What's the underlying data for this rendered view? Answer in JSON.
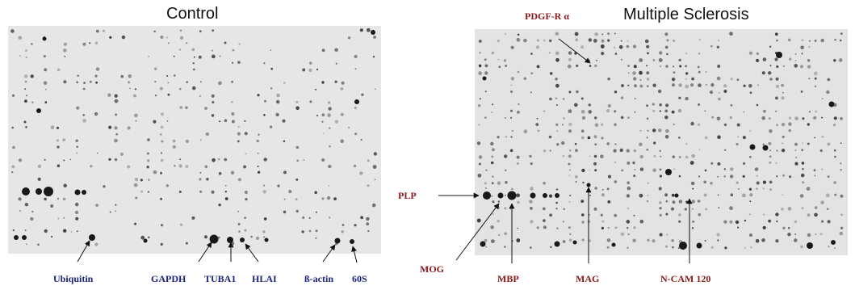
{
  "panels": {
    "control": {
      "title": "Control",
      "labels": {
        "ubiquitin": "Ubiquitin",
        "gapdh": "GAPDH",
        "tuba1": "TUBA1",
        "hlai": "HLAI",
        "b_actin": "ß-actin",
        "s60": "60S"
      }
    },
    "ms": {
      "title": "Multiple Sclerosis",
      "labels": {
        "pdgfr": "PDGF-R α",
        "plp": "PLP",
        "mog": "MOG",
        "mbp": "MBP",
        "mag": "MAG",
        "ncam": "N-CAM 120"
      }
    }
  },
  "colors": {
    "control_labels": "#1a237e",
    "ms_labels": "#8b1a1a",
    "membrane": "#e4e4e4"
  }
}
